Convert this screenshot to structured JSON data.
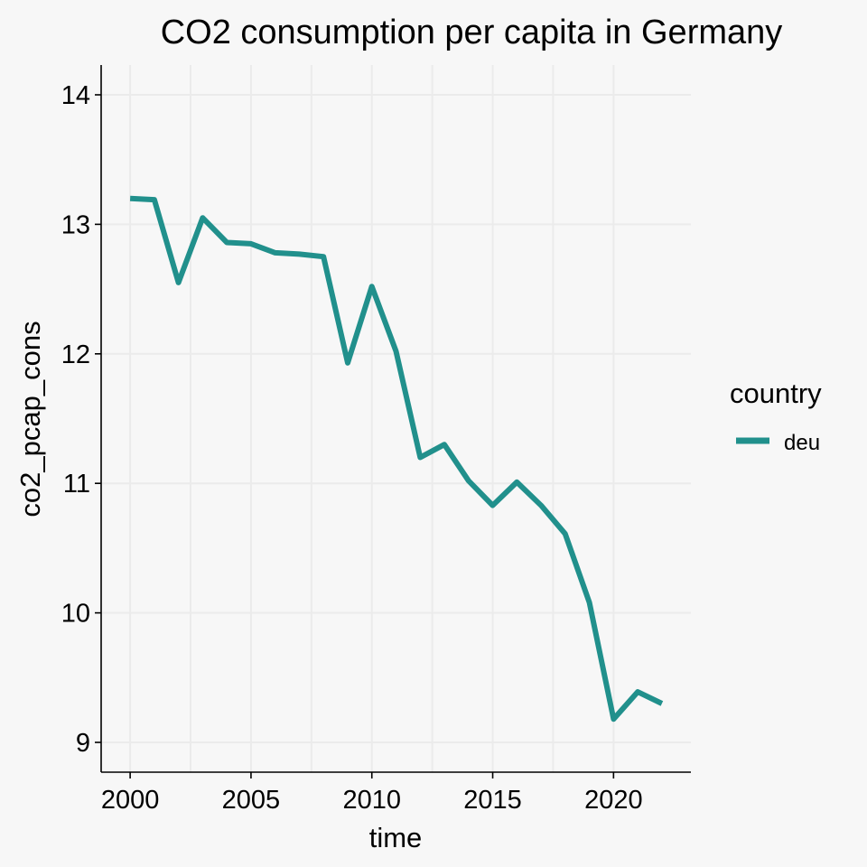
{
  "chart_data": {
    "type": "line",
    "title": "CO2 consumption per capita in Germany",
    "xlabel": "time",
    "ylabel": "co2_pcap_cons",
    "xlim": [
      1998.8,
      2023.2
    ],
    "ylim": [
      8.77,
      14.23
    ],
    "x_ticks": [
      2000,
      2005,
      2010,
      2015,
      2020
    ],
    "y_ticks": [
      9,
      10,
      11,
      12,
      13,
      14
    ],
    "grid": true,
    "legend": {
      "title": "country",
      "position": "right"
    },
    "series": [
      {
        "name": "deu",
        "color": "#21908c",
        "x": [
          2000,
          2001,
          2002,
          2003,
          2004,
          2005,
          2006,
          2007,
          2008,
          2009,
          2010,
          2011,
          2012,
          2013,
          2014,
          2015,
          2016,
          2017,
          2018,
          2019,
          2020,
          2021,
          2022
        ],
        "y": [
          13.2,
          13.19,
          12.55,
          13.05,
          12.86,
          12.85,
          12.78,
          12.77,
          12.75,
          11.93,
          12.52,
          12.02,
          11.2,
          11.3,
          11.02,
          10.83,
          11.01,
          10.83,
          10.61,
          10.08,
          9.18,
          9.39,
          9.3
        ]
      }
    ]
  }
}
